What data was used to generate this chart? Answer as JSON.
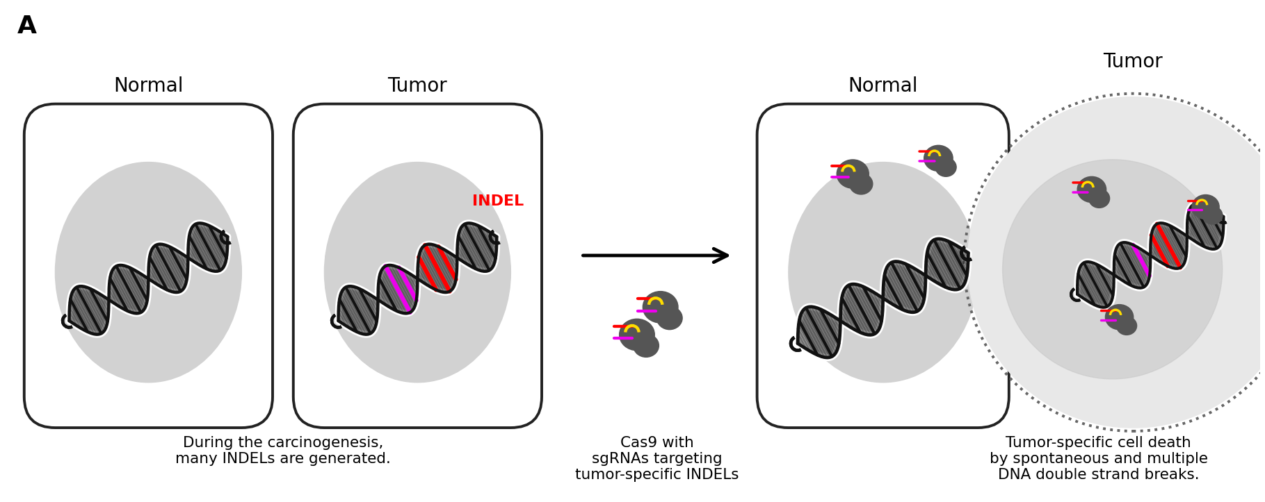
{
  "title_label": "A",
  "title_fontsize": 26,
  "title_fontweight": "bold",
  "bg_color": "#ffffff",
  "fig_width": 18.19,
  "fig_height": 7.23,
  "panel1_normal_label": "Normal",
  "panel1_tumor_label": "Tumor",
  "panel1_text": "During the carcinogenesis,\nmany INDELs are generated.",
  "panel2_text": "Cas9 with\nsgRNAs targeting\ntumor-specific INDELs",
  "panel3_normal_label": "Normal",
  "panel3_tumor_label": "Tumor",
  "panel3_text": "Tumor-specific cell death\nby spontaneous and multiple\nDNA double strand breaks.",
  "indel_color": "#ff0000",
  "indel_label": "INDEL",
  "magenta_color": "#ee00ee",
  "red_color": "#ff0000",
  "yellow_color": "#ffdd00",
  "dna_color": "#111111",
  "cell_bg": "#d0d0d0",
  "cell_outline": "#222222",
  "cas9_color": "#555555",
  "label_fontsize": 20,
  "caption_fontsize": 15.5
}
